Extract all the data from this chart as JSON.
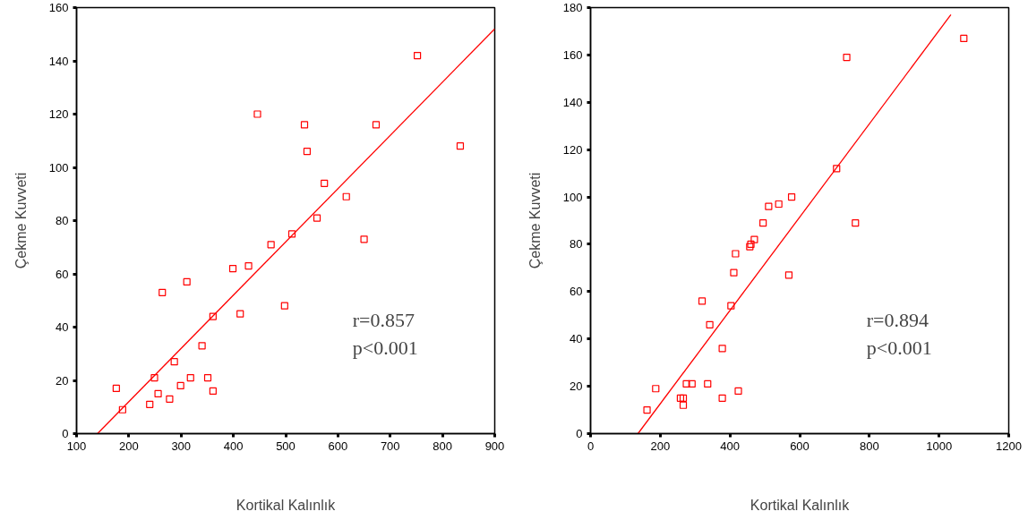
{
  "chart_data": [
    {
      "type": "scatter",
      "xlabel": "Kortikal Kalınlık",
      "ylabel": "Çekme Kuvveti",
      "grid": false,
      "xlim": [
        100,
        900
      ],
      "xticks": [
        100,
        200,
        300,
        400,
        500,
        600,
        700,
        800,
        900
      ],
      "ylim": [
        0,
        160
      ],
      "yticks": [
        0,
        20,
        40,
        60,
        80,
        100,
        120,
        140,
        160
      ],
      "annotations": [
        "r=0.857",
        "p<0.001"
      ],
      "series": [
        {
          "marker": "square",
          "color": "#ff0000",
          "x": [
            176,
            188,
            240,
            249,
            256,
            264,
            278,
            287,
            299,
            311,
            318,
            340,
            351,
            361,
            361,
            399,
            413,
            429,
            446,
            472,
            498,
            512,
            536,
            541,
            560,
            574,
            616,
            650,
            673,
            752,
            834
          ],
          "values": [
            17,
            9,
            11,
            21,
            15,
            53,
            13,
            27,
            18,
            57,
            21,
            33,
            21,
            16,
            44,
            62,
            45,
            63,
            120,
            71,
            48,
            75,
            116,
            106,
            81,
            94,
            89,
            73,
            116,
            142,
            108
          ]
        },
        {
          "type": "line",
          "color": "#ff0000",
          "x": [
            140,
            900
          ],
          "values": [
            0,
            152
          ]
        }
      ]
    },
    {
      "type": "scatter",
      "xlabel": "Kortikal Kalınlık",
      "ylabel": "Çekme Kuvveti",
      "grid": false,
      "xlim": [
        0,
        1200
      ],
      "xticks": [
        0,
        200,
        400,
        600,
        800,
        1000,
        1200
      ],
      "ylim": [
        0,
        180
      ],
      "yticks": [
        0,
        20,
        40,
        60,
        80,
        100,
        120,
        140,
        160,
        180
      ],
      "annotations": [
        "r=0.894",
        "p<0.001"
      ],
      "series": [
        {
          "marker": "square",
          "color": "#ff0000",
          "x": [
            162,
            187,
            258,
            266,
            266,
            275,
            291,
            320,
            336,
            342,
            378,
            378,
            403,
            411,
            416,
            424,
            457,
            460,
            470,
            495,
            511,
            540,
            569,
            577,
            706,
            735,
            760,
            1071
          ],
          "values": [
            10,
            19,
            15,
            15,
            12,
            21,
            21,
            56,
            21,
            46,
            36,
            15,
            54,
            68,
            76,
            18,
            79,
            80,
            82,
            89,
            96,
            97,
            67,
            100,
            112,
            159,
            89,
            167
          ]
        },
        {
          "type": "line",
          "color": "#ff0000",
          "x": [
            136,
            1034
          ],
          "values": [
            0,
            177
          ]
        }
      ]
    }
  ]
}
